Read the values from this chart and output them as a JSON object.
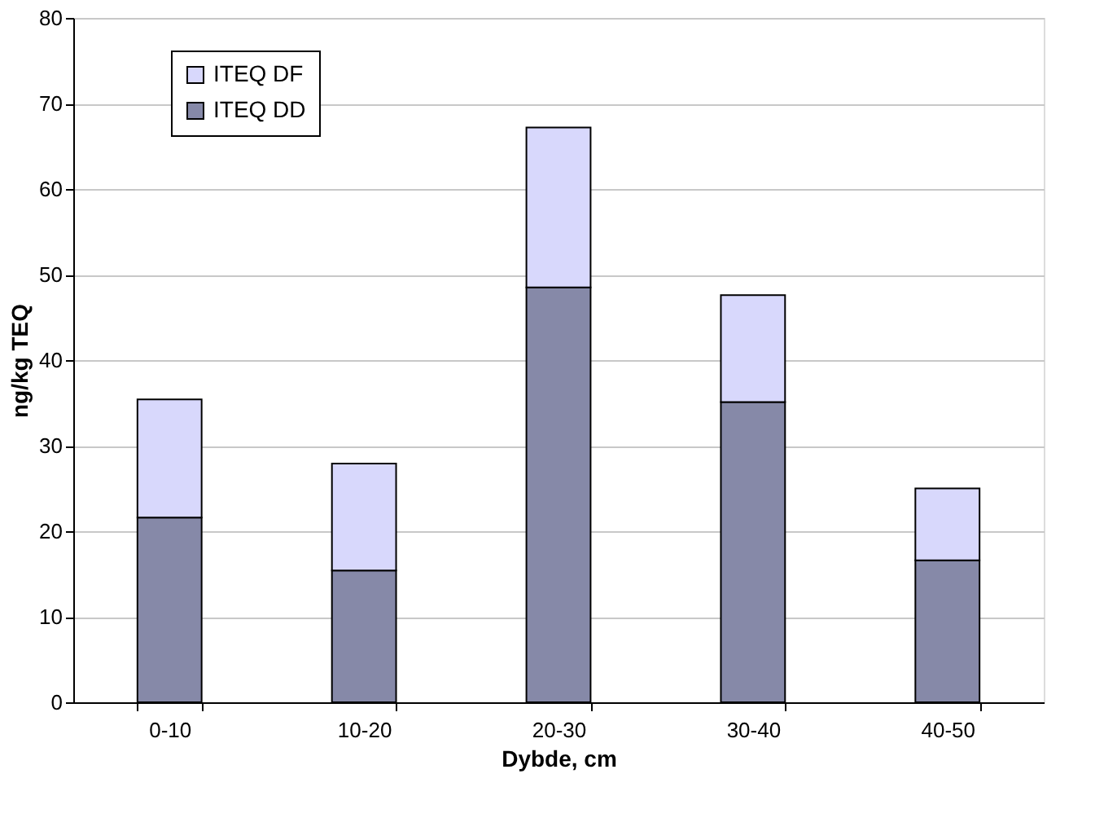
{
  "chart_data": {
    "type": "bar",
    "stacked": true,
    "xlabel": "Dybde, cm",
    "ylabel": "ng/kg TEQ",
    "categories": [
      "0-10",
      "10-20",
      "20-30",
      "30-40",
      "40-50"
    ],
    "series": [
      {
        "name": "ITEQ DD",
        "color": "#8689a8",
        "values": [
          21.6,
          15.4,
          48.5,
          35.1,
          16.6
        ]
      },
      {
        "name": "ITEQ DF",
        "color": "#d8d8fc",
        "values": [
          13.8,
          12.5,
          18.7,
          12.5,
          8.4
        ]
      }
    ],
    "ylim": [
      0,
      80
    ],
    "yticks": [
      0,
      10,
      20,
      30,
      40,
      50,
      60,
      70,
      80
    ],
    "grid": "y",
    "legend": "top left"
  }
}
